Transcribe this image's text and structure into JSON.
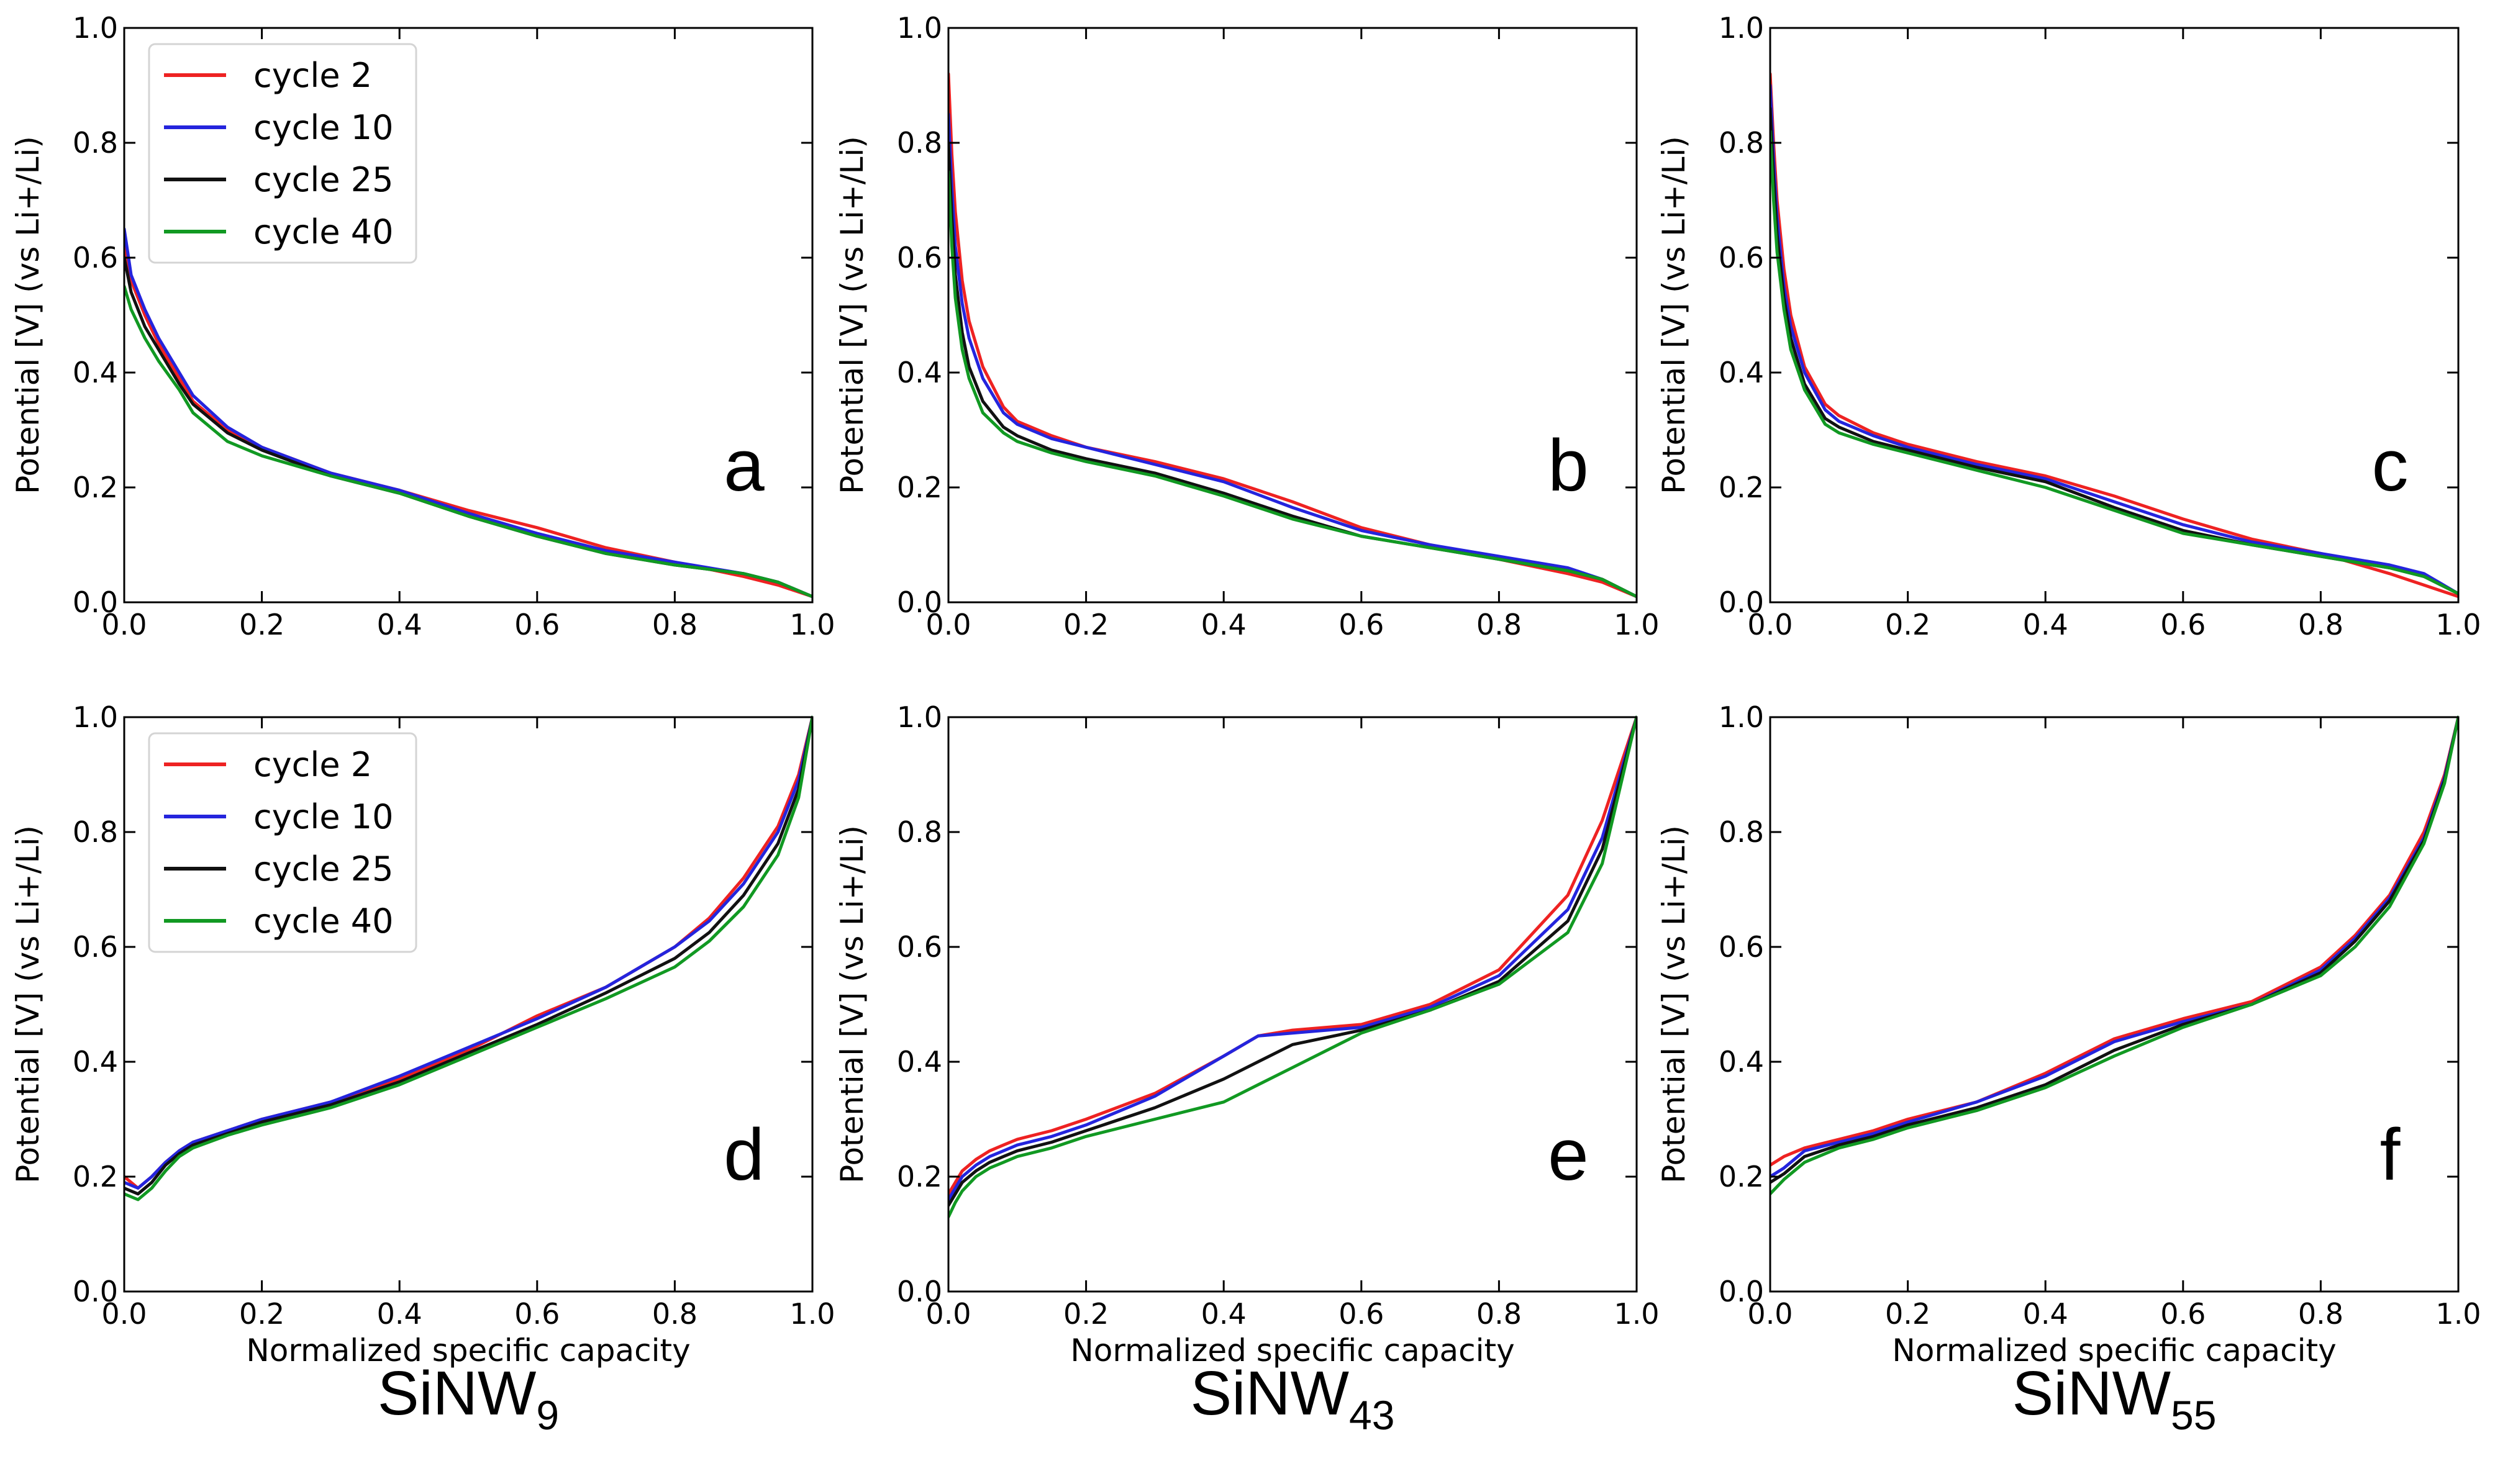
{
  "figure": {
    "series_styles": [
      {
        "name": "cycle 2",
        "color": "#ee2222"
      },
      {
        "name": "cycle 10",
        "color": "#2424dd"
      },
      {
        "name": "cycle 25",
        "color": "#111111"
      },
      {
        "name": "cycle 40",
        "color": "#119922"
      }
    ],
    "column_labels": [
      {
        "main": "SiNW",
        "sub": "9"
      },
      {
        "main": "SiNW",
        "sub": "43"
      },
      {
        "main": "SiNW",
        "sub": "55"
      }
    ]
  },
  "chart_data": [
    {
      "panel": "a",
      "type": "line",
      "xlabel": "",
      "ylabel": "Potential [V] (vs Li+/Li)",
      "xlim": [
        0,
        1
      ],
      "ylim": [
        0,
        1
      ],
      "xticks": [
        "0.0",
        "0.2",
        "0.4",
        "0.6",
        "0.8",
        "1.0"
      ],
      "yticks": [
        "0.0",
        "0.2",
        "0.4",
        "0.6",
        "0.8",
        "1.0"
      ],
      "legend": "upper-left",
      "x": [
        0,
        0.01,
        0.03,
        0.05,
        0.08,
        0.1,
        0.15,
        0.2,
        0.3,
        0.4,
        0.5,
        0.6,
        0.7,
        0.8,
        0.9,
        0.95,
        1.0
      ],
      "series": [
        {
          "name": "cycle 2",
          "values": [
            0.62,
            0.56,
            0.5,
            0.45,
            0.39,
            0.35,
            0.3,
            0.27,
            0.225,
            0.195,
            0.16,
            0.13,
            0.095,
            0.07,
            0.045,
            0.03,
            0.01
          ]
        },
        {
          "name": "cycle 10",
          "values": [
            0.65,
            0.57,
            0.51,
            0.46,
            0.4,
            0.36,
            0.305,
            0.27,
            0.225,
            0.195,
            0.155,
            0.12,
            0.09,
            0.07,
            0.05,
            0.035,
            0.01
          ]
        },
        {
          "name": "cycle 25",
          "values": [
            0.6,
            0.54,
            0.48,
            0.44,
            0.38,
            0.345,
            0.295,
            0.265,
            0.22,
            0.19,
            0.15,
            0.115,
            0.085,
            0.065,
            0.05,
            0.035,
            0.01
          ]
        },
        {
          "name": "cycle 40",
          "values": [
            0.55,
            0.51,
            0.46,
            0.42,
            0.37,
            0.33,
            0.28,
            0.255,
            0.22,
            0.19,
            0.15,
            0.115,
            0.085,
            0.065,
            0.05,
            0.035,
            0.01
          ]
        }
      ]
    },
    {
      "panel": "b",
      "type": "line",
      "xlabel": "",
      "ylabel": "Potential [V] (vs Li+/Li)",
      "xlim": [
        0,
        1
      ],
      "ylim": [
        0,
        1
      ],
      "xticks": [
        "0.0",
        "0.2",
        "0.4",
        "0.6",
        "0.8",
        "1.0"
      ],
      "yticks": [
        "0.0",
        "0.2",
        "0.4",
        "0.6",
        "0.8",
        "1.0"
      ],
      "x": [
        0,
        0.005,
        0.01,
        0.02,
        0.03,
        0.05,
        0.08,
        0.1,
        0.15,
        0.2,
        0.3,
        0.4,
        0.5,
        0.6,
        0.7,
        0.8,
        0.9,
        0.95,
        1.0
      ],
      "series": [
        {
          "name": "cycle 2",
          "values": [
            0.92,
            0.78,
            0.68,
            0.56,
            0.49,
            0.41,
            0.34,
            0.315,
            0.29,
            0.27,
            0.245,
            0.215,
            0.175,
            0.13,
            0.1,
            0.075,
            0.05,
            0.035,
            0.01
          ]
        },
        {
          "name": "cycle 10",
          "values": [
            0.85,
            0.72,
            0.62,
            0.52,
            0.46,
            0.39,
            0.33,
            0.31,
            0.285,
            0.27,
            0.24,
            0.21,
            0.165,
            0.125,
            0.1,
            0.08,
            0.06,
            0.04,
            0.01
          ]
        },
        {
          "name": "cycle 25",
          "values": [
            0.8,
            0.67,
            0.57,
            0.47,
            0.41,
            0.35,
            0.305,
            0.29,
            0.265,
            0.25,
            0.225,
            0.19,
            0.15,
            0.115,
            0.095,
            0.075,
            0.055,
            0.04,
            0.01
          ]
        },
        {
          "name": "cycle 40",
          "values": [
            0.75,
            0.62,
            0.53,
            0.44,
            0.39,
            0.33,
            0.295,
            0.28,
            0.26,
            0.245,
            0.22,
            0.185,
            0.145,
            0.115,
            0.095,
            0.075,
            0.055,
            0.04,
            0.01
          ]
        }
      ]
    },
    {
      "panel": "c",
      "type": "line",
      "xlabel": "",
      "ylabel": "Potential [V] (vs Li+/Li)",
      "xlim": [
        0,
        1
      ],
      "ylim": [
        0,
        1
      ],
      "xticks": [
        "0.0",
        "0.2",
        "0.4",
        "0.6",
        "0.8",
        "1.0"
      ],
      "yticks": [
        "0.0",
        "0.2",
        "0.4",
        "0.6",
        "0.8",
        "1.0"
      ],
      "x": [
        0,
        0.005,
        0.01,
        0.02,
        0.03,
        0.05,
        0.08,
        0.1,
        0.15,
        0.2,
        0.3,
        0.4,
        0.5,
        0.6,
        0.7,
        0.8,
        0.9,
        0.95,
        1.0
      ],
      "series": [
        {
          "name": "cycle 2",
          "values": [
            0.92,
            0.8,
            0.7,
            0.58,
            0.5,
            0.41,
            0.345,
            0.325,
            0.295,
            0.275,
            0.245,
            0.22,
            0.185,
            0.145,
            0.11,
            0.085,
            0.05,
            0.03,
            0.01
          ]
        },
        {
          "name": "cycle 10",
          "values": [
            0.9,
            0.77,
            0.67,
            0.55,
            0.48,
            0.4,
            0.335,
            0.315,
            0.29,
            0.27,
            0.24,
            0.215,
            0.175,
            0.135,
            0.105,
            0.085,
            0.065,
            0.05,
            0.015
          ]
        },
        {
          "name": "cycle 25",
          "values": [
            0.86,
            0.74,
            0.64,
            0.53,
            0.46,
            0.38,
            0.32,
            0.305,
            0.28,
            0.265,
            0.235,
            0.21,
            0.165,
            0.125,
            0.1,
            0.08,
            0.06,
            0.045,
            0.015
          ]
        },
        {
          "name": "cycle 40",
          "values": [
            0.82,
            0.7,
            0.61,
            0.51,
            0.44,
            0.37,
            0.31,
            0.295,
            0.275,
            0.26,
            0.23,
            0.2,
            0.16,
            0.12,
            0.1,
            0.08,
            0.06,
            0.045,
            0.015
          ]
        }
      ]
    },
    {
      "panel": "d",
      "type": "line",
      "xlabel": "Normalized specific capacity",
      "ylabel": "Potential [V] (vs Li+/Li)",
      "xlim": [
        0,
        1
      ],
      "ylim": [
        0,
        1
      ],
      "xticks": [
        "0.0",
        "0.2",
        "0.4",
        "0.6",
        "0.8",
        "1.0"
      ],
      "yticks": [
        "0.0",
        "0.2",
        "0.4",
        "0.6",
        "0.8",
        "1.0"
      ],
      "legend": "upper-left",
      "x": [
        0,
        0.02,
        0.04,
        0.06,
        0.08,
        0.1,
        0.15,
        0.2,
        0.3,
        0.4,
        0.5,
        0.6,
        0.7,
        0.8,
        0.85,
        0.9,
        0.95,
        0.98,
        1.0
      ],
      "series": [
        {
          "name": "cycle 2",
          "values": [
            0.2,
            0.18,
            0.2,
            0.225,
            0.245,
            0.26,
            0.28,
            0.3,
            0.33,
            0.37,
            0.42,
            0.48,
            0.53,
            0.6,
            0.65,
            0.72,
            0.81,
            0.9,
            1.0
          ]
        },
        {
          "name": "cycle 10",
          "values": [
            0.19,
            0.18,
            0.2,
            0.225,
            0.245,
            0.26,
            0.28,
            0.3,
            0.33,
            0.375,
            0.425,
            0.475,
            0.53,
            0.6,
            0.645,
            0.71,
            0.8,
            0.89,
            1.0
          ]
        },
        {
          "name": "cycle 25",
          "values": [
            0.18,
            0.17,
            0.19,
            0.22,
            0.24,
            0.255,
            0.275,
            0.295,
            0.325,
            0.365,
            0.415,
            0.465,
            0.52,
            0.58,
            0.625,
            0.69,
            0.78,
            0.875,
            1.0
          ]
        },
        {
          "name": "cycle 40",
          "values": [
            0.17,
            0.16,
            0.18,
            0.21,
            0.235,
            0.25,
            0.272,
            0.29,
            0.32,
            0.36,
            0.41,
            0.46,
            0.51,
            0.565,
            0.61,
            0.67,
            0.76,
            0.86,
            1.0
          ]
        }
      ]
    },
    {
      "panel": "e",
      "type": "line",
      "xlabel": "Normalized specific capacity",
      "ylabel": "Potential [V] (vs Li+/Li)",
      "xlim": [
        0,
        1
      ],
      "ylim": [
        0,
        1
      ],
      "xticks": [
        "0.0",
        "0.2",
        "0.4",
        "0.6",
        "0.8",
        "1.0"
      ],
      "yticks": [
        "0.0",
        "0.2",
        "0.4",
        "0.6",
        "0.8",
        "1.0"
      ],
      "x": [
        0,
        0.01,
        0.02,
        0.04,
        0.06,
        0.08,
        0.1,
        0.15,
        0.2,
        0.3,
        0.4,
        0.45,
        0.5,
        0.6,
        0.7,
        0.8,
        0.9,
        0.95,
        1.0
      ],
      "series": [
        {
          "name": "cycle 2",
          "values": [
            0.17,
            0.19,
            0.21,
            0.23,
            0.245,
            0.255,
            0.265,
            0.28,
            0.3,
            0.345,
            0.41,
            0.445,
            0.455,
            0.465,
            0.5,
            0.56,
            0.69,
            0.82,
            1.0
          ]
        },
        {
          "name": "cycle 10",
          "values": [
            0.16,
            0.18,
            0.2,
            0.22,
            0.235,
            0.245,
            0.255,
            0.27,
            0.29,
            0.34,
            0.41,
            0.445,
            0.45,
            0.46,
            0.495,
            0.55,
            0.665,
            0.79,
            1.0
          ]
        },
        {
          "name": "cycle 25",
          "values": [
            0.15,
            0.17,
            0.19,
            0.21,
            0.225,
            0.235,
            0.245,
            0.26,
            0.28,
            0.32,
            0.37,
            0.4,
            0.43,
            0.455,
            0.49,
            0.54,
            0.645,
            0.77,
            1.0
          ]
        },
        {
          "name": "cycle 40",
          "values": [
            0.13,
            0.155,
            0.175,
            0.2,
            0.215,
            0.225,
            0.235,
            0.25,
            0.27,
            0.3,
            0.33,
            0.36,
            0.39,
            0.45,
            0.49,
            0.535,
            0.625,
            0.745,
            1.0
          ]
        }
      ]
    },
    {
      "panel": "f",
      "type": "line",
      "xlabel": "Normalized specific capacity",
      "ylabel": "Potential [V] (vs Li+/Li)",
      "xlim": [
        0,
        1
      ],
      "ylim": [
        0,
        1
      ],
      "xticks": [
        "0.0",
        "0.2",
        "0.4",
        "0.6",
        "0.8",
        "1.0"
      ],
      "yticks": [
        "0.0",
        "0.2",
        "0.4",
        "0.6",
        "0.8",
        "1.0"
      ],
      "x": [
        0,
        0.02,
        0.05,
        0.1,
        0.15,
        0.2,
        0.3,
        0.4,
        0.5,
        0.6,
        0.7,
        0.8,
        0.85,
        0.9,
        0.95,
        0.98,
        1.0
      ],
      "series": [
        {
          "name": "cycle 2",
          "values": [
            0.22,
            0.235,
            0.25,
            0.265,
            0.28,
            0.3,
            0.33,
            0.38,
            0.44,
            0.475,
            0.505,
            0.565,
            0.62,
            0.69,
            0.8,
            0.9,
            1.0
          ]
        },
        {
          "name": "cycle 10",
          "values": [
            0.2,
            0.215,
            0.245,
            0.26,
            0.275,
            0.295,
            0.33,
            0.375,
            0.435,
            0.47,
            0.5,
            0.56,
            0.615,
            0.685,
            0.79,
            0.895,
            1.0
          ]
        },
        {
          "name": "cycle 25",
          "values": [
            0.19,
            0.205,
            0.235,
            0.255,
            0.27,
            0.29,
            0.32,
            0.36,
            0.42,
            0.465,
            0.5,
            0.555,
            0.61,
            0.68,
            0.785,
            0.89,
            1.0
          ]
        },
        {
          "name": "cycle 40",
          "values": [
            0.17,
            0.195,
            0.225,
            0.25,
            0.265,
            0.285,
            0.315,
            0.355,
            0.41,
            0.46,
            0.5,
            0.55,
            0.6,
            0.67,
            0.78,
            0.885,
            1.0
          ]
        }
      ]
    }
  ]
}
